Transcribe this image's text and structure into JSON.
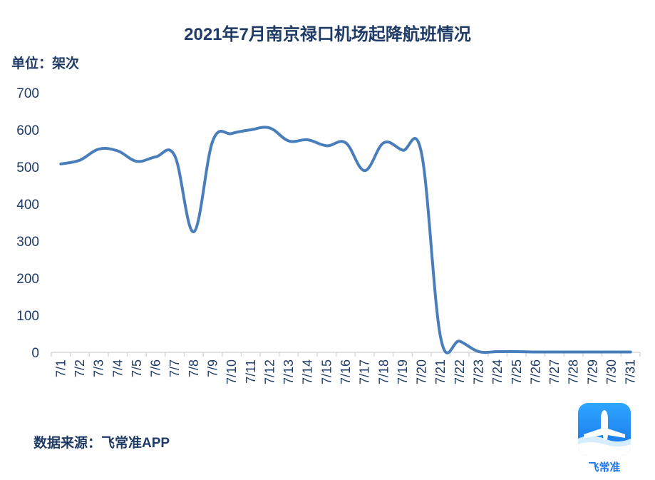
{
  "page": {
    "title": "2021年7月南京禄口机场起降航班情况",
    "unit_label": "单位：架次",
    "source_label": "数据来源：飞常准APP",
    "logo_label": "飞常准",
    "logo_icon": "airplane-icon"
  },
  "colors": {
    "line": "#4a7ebb",
    "text": "#1f3b66",
    "axis": "#d9d9d9",
    "logo": "#1a73e8"
  },
  "chart_data": {
    "type": "line",
    "title": "2021年7月南京禄口机场起降航班情况",
    "ylabel": "单位：架次",
    "xlabel": "",
    "ylim": [
      0,
      700
    ],
    "yticks": [
      0,
      100,
      200,
      300,
      400,
      500,
      600,
      700
    ],
    "grid": false,
    "categories": [
      "7/1",
      "7/2",
      "7/3",
      "7/4",
      "7/5",
      "7/6",
      "7/7",
      "7/8",
      "7/9",
      "7/10",
      "7/11",
      "7/12",
      "7/13",
      "7/14",
      "7/15",
      "7/16",
      "7/17",
      "7/18",
      "7/19",
      "7/20",
      "7/21",
      "7/22",
      "7/23",
      "7/24",
      "7/25",
      "7/26",
      "7/27",
      "7/28",
      "7/29",
      "7/30",
      "7/31"
    ],
    "series": [
      {
        "values": [
          508,
          518,
          548,
          543,
          515,
          527,
          530,
          325,
          570,
          590,
          600,
          605,
          570,
          573,
          557,
          565,
          490,
          565,
          545,
          535,
          40,
          30,
          2,
          2,
          2,
          1,
          1,
          1,
          1,
          1,
          1
        ]
      }
    ]
  }
}
